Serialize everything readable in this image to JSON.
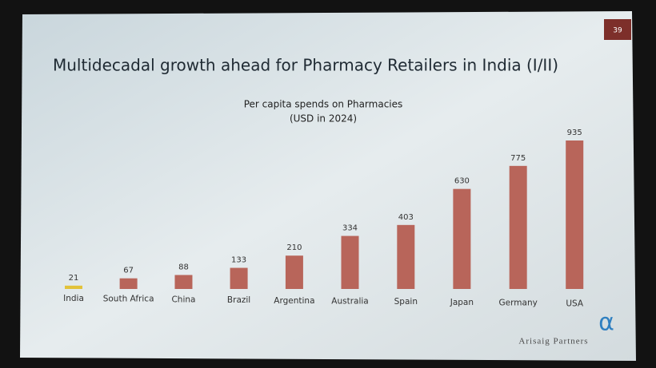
{
  "slide": {
    "page_number": "39",
    "brand": "Arisaig Partners",
    "logo": "α"
  },
  "chart_data": {
    "type": "bar",
    "title": "Multidecadal growth ahead for Pharmacy Retailers in India (I/II)",
    "subtitle": [
      "Per capita spends on Pharmacies",
      "(USD in 2024)"
    ],
    "categories": [
      "India",
      "South Africa",
      "China",
      "Brazil",
      "Argentina",
      "Australia",
      "Spain",
      "Japan",
      "Germany",
      "USA"
    ],
    "values": [
      21,
      67,
      88,
      133,
      210,
      334,
      403,
      630,
      775,
      935
    ],
    "colors": [
      "#e2c23a",
      "#b8655a",
      "#b8655a",
      "#b8655a",
      "#b8655a",
      "#b8655a",
      "#b8655a",
      "#b8655a",
      "#b8655a",
      "#b8655a"
    ]
  }
}
